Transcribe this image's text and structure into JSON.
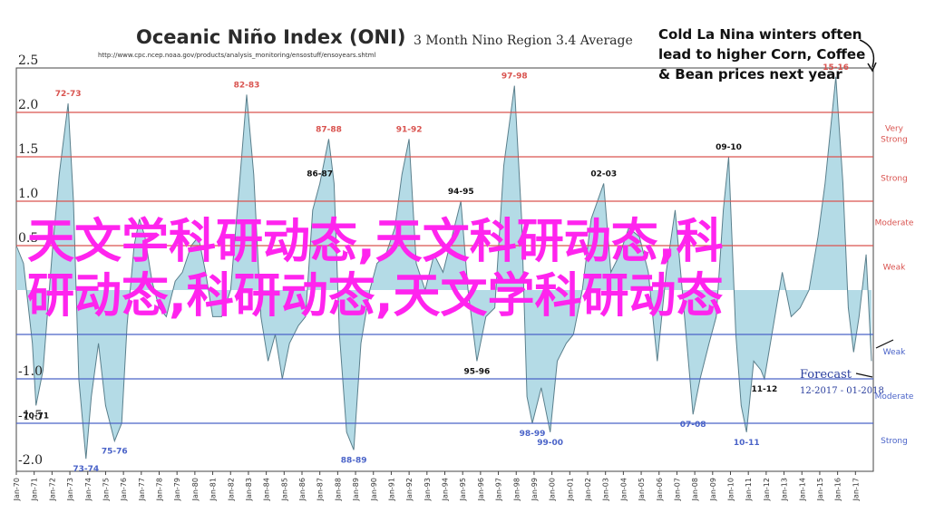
{
  "chart_data": {
    "type": "area",
    "title": "Oceanic Niño Index (ONI)",
    "subtitle": "3 Month Nino Region 3.4 Average",
    "source_url": "http://www.cpc.ncep.noaa.gov/products/analysis_monitoring/ensostuff/ensoyears.shtml",
    "callout": [
      "Cold La Nina winters often",
      "lead to higher Corn, Coffee",
      "& Bean prices next year"
    ],
    "ylim": [
      -2.5,
      2.5
    ],
    "y_tick_labels": [
      "2.5",
      "2.0",
      "1.5",
      "1.0",
      "0.5",
      "-1.0",
      "-1.5",
      "-2.0"
    ],
    "x_tick_labels": [
      "Jan-70",
      "Jan-71",
      "Jan-72",
      "Jan-73",
      "Jan-74",
      "Jan-75",
      "Jan-76",
      "Jan-77",
      "Jan-78",
      "Jan-79",
      "Jan-80",
      "Jan-81",
      "Jan-82",
      "Jan-83",
      "Jan-84",
      "Jan-85",
      "Jan-86",
      "Jan-87",
      "Jan-88",
      "Jan-89",
      "Jan-90",
      "Jan-91",
      "Jan-92",
      "Jan-93",
      "Jan-94",
      "Jan-95",
      "Jan-96",
      "Jan-97",
      "Jan-98",
      "Jan-99",
      "Jan-00",
      "Jan-01",
      "Jan-02",
      "Jan-03",
      "Jan-04",
      "Jan-05",
      "Jan-06",
      "Jan-07",
      "Jan-08",
      "Jan-09",
      "Jan-10",
      "Jan-11",
      "Jan-12",
      "Jan-13",
      "Jan-14",
      "Jan-15",
      "Jan-16",
      "Jan-17"
    ],
    "x_range": [
      1970.0,
      2018.0
    ],
    "thresholds": [
      {
        "value": 2.0,
        "label": "Very\nStrong",
        "color": "#d9534f"
      },
      {
        "value": 1.5,
        "label": "Strong",
        "color": "#d9534f"
      },
      {
        "value": 1.0,
        "label": "Moderate",
        "color": "#d9534f"
      },
      {
        "value": 0.5,
        "label": "Weak",
        "color": "#d9534f"
      },
      {
        "value": -0.5,
        "label": "Weak",
        "color": "#4a63c8"
      },
      {
        "value": -1.0,
        "label": "Moderate",
        "color": "#4a63c8"
      },
      {
        "value": -1.5,
        "label": "Strong",
        "color": "#4a63c8"
      }
    ],
    "series": [
      {
        "x": [
          1970.0,
          1970.4,
          1970.9,
          1971.1,
          1971.5,
          1972.0,
          1972.4,
          1972.9,
          1973.2,
          1973.5,
          1973.9,
          1974.2,
          1974.6,
          1975.0,
          1975.5,
          1975.9,
          1976.2,
          1976.6,
          1976.9,
          1977.2,
          1977.6,
          1978.0,
          1978.4,
          1978.9,
          1979.3,
          1979.8,
          1980.2,
          1980.6,
          1981.0,
          1981.5,
          1982.0,
          1982.5,
          1982.9,
          1983.3,
          1983.7,
          1984.1,
          1984.5,
          1984.9,
          1985.3,
          1985.8,
          1986.2,
          1986.6,
          1987.0,
          1987.5,
          1987.8,
          1988.1,
          1988.5,
          1988.9,
          1989.3,
          1989.8,
          1990.2,
          1990.7,
          1991.2,
          1991.6,
          1992.0,
          1992.4,
          1992.9,
          1993.4,
          1993.9,
          1994.4,
          1994.9,
          1995.3,
          1995.8,
          1996.3,
          1996.8,
          1997.3,
          1997.9,
          1998.3,
          1998.6,
          1998.9,
          1999.4,
          1999.9,
          2000.3,
          2000.8,
          2001.2,
          2001.7,
          2002.2,
          2002.9,
          2003.3,
          2003.8,
          2004.3,
          2004.9,
          2005.4,
          2005.9,
          2006.4,
          2006.9,
          2007.3,
          2007.9,
          2008.3,
          2008.8,
          2009.2,
          2009.6,
          2009.9,
          2010.3,
          2010.6,
          2010.9,
          2011.3,
          2011.7,
          2011.9,
          2012.4,
          2012.9,
          2013.4,
          2013.9,
          2014.4,
          2014.9,
          2015.3,
          2015.7,
          2015.9,
          2016.3,
          2016.6,
          2016.9,
          2017.2,
          2017.6,
          2017.9
        ],
        "y": [
          0.5,
          0.3,
          -0.6,
          -1.3,
          -0.9,
          0.4,
          1.3,
          2.1,
          1.0,
          -1.0,
          -1.9,
          -1.2,
          -0.6,
          -1.3,
          -1.7,
          -1.5,
          -0.4,
          0.5,
          0.8,
          0.6,
          0.1,
          -0.2,
          -0.3,
          0.1,
          0.2,
          0.5,
          0.6,
          0.2,
          -0.3,
          -0.3,
          0.0,
          1.2,
          2.2,
          1.3,
          -0.3,
          -0.8,
          -0.5,
          -1.0,
          -0.6,
          -0.4,
          -0.3,
          0.9,
          1.2,
          1.7,
          1.2,
          -0.5,
          -1.6,
          -1.8,
          -0.6,
          0.0,
          0.3,
          0.4,
          0.7,
          1.3,
          1.7,
          0.3,
          0.0,
          0.4,
          0.2,
          0.6,
          1.0,
          0.0,
          -0.8,
          -0.3,
          -0.2,
          1.4,
          2.3,
          0.8,
          -1.2,
          -1.5,
          -1.1,
          -1.6,
          -0.8,
          -0.6,
          -0.5,
          0.0,
          0.8,
          1.2,
          0.2,
          0.4,
          0.7,
          0.6,
          0.2,
          -0.8,
          0.2,
          0.9,
          0.0,
          -1.4,
          -1.0,
          -0.6,
          -0.3,
          0.9,
          1.5,
          -0.5,
          -1.3,
          -1.6,
          -0.8,
          -0.9,
          -1.0,
          -0.4,
          0.2,
          -0.3,
          -0.2,
          0.0,
          0.6,
          1.2,
          2.0,
          2.4,
          1.2,
          -0.2,
          -0.7,
          -0.3,
          0.4,
          -0.8
        ]
      }
    ],
    "annotations": [
      {
        "label": "70-71",
        "x": 1971.1,
        "y": -1.3,
        "color": "#111"
      },
      {
        "label": "72-73",
        "x": 1972.9,
        "y": 2.1,
        "color": "#d9534f"
      },
      {
        "label": "73-74",
        "x": 1973.9,
        "y": -1.9,
        "color": "#4a63c8"
      },
      {
        "label": "75-76",
        "x": 1975.5,
        "y": -1.7,
        "color": "#4a63c8"
      },
      {
        "label": "82-83",
        "x": 1982.9,
        "y": 2.2,
        "color": "#d9534f"
      },
      {
        "label": "86-87",
        "x": 1987.0,
        "y": 1.2,
        "color": "#111"
      },
      {
        "label": "87-88",
        "x": 1987.5,
        "y": 1.7,
        "color": "#d9534f"
      },
      {
        "label": "88-89",
        "x": 1988.9,
        "y": -1.8,
        "color": "#4a63c8"
      },
      {
        "label": "91-92",
        "x": 1992.0,
        "y": 1.7,
        "color": "#d9534f"
      },
      {
        "label": "94-95",
        "x": 1994.9,
        "y": 1.0,
        "color": "#111"
      },
      {
        "label": "95-96",
        "x": 1995.8,
        "y": -0.8,
        "color": "#111"
      },
      {
        "label": "97-98",
        "x": 1997.9,
        "y": 2.3,
        "color": "#d9534f"
      },
      {
        "label": "98-99",
        "x": 1998.9,
        "y": -1.5,
        "color": "#4a63c8"
      },
      {
        "label": "99-00",
        "x": 1999.9,
        "y": -1.6,
        "color": "#4a63c8"
      },
      {
        "label": "02-03",
        "x": 2002.9,
        "y": 1.2,
        "color": "#111"
      },
      {
        "label": "07-08",
        "x": 2007.9,
        "y": -1.4,
        "color": "#4a63c8"
      },
      {
        "label": "09-10",
        "x": 2009.9,
        "y": 1.5,
        "color": "#111"
      },
      {
        "label": "10-11",
        "x": 2010.9,
        "y": -1.6,
        "color": "#4a63c8"
      },
      {
        "label": "11-12",
        "x": 2011.9,
        "y": -1.0,
        "color": "#111"
      },
      {
        "label": "15-16",
        "x": 2015.9,
        "y": 2.4,
        "color": "#d9534f"
      }
    ],
    "forecast": {
      "label": "Forecast",
      "range": "12-2017 - 01-2018"
    },
    "grid": false
  },
  "overlay_text": {
    "line1": "天文学科研动态,天文科研动态,科",
    "line2": "研动态,科研动态,天文学科研动态"
  },
  "colors": {
    "fill": "#b4dbe6",
    "stroke": "#5a7f8c",
    "warm_line": "#d9534f",
    "cool_line": "#4a63c8",
    "watermark": "#ff24ee"
  }
}
